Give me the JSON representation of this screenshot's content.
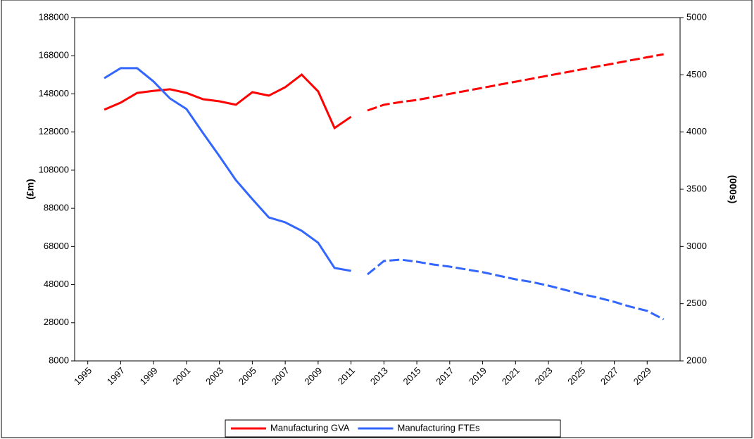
{
  "chart_data": {
    "type": "line",
    "y_label": "(£m)",
    "y2_label": "(000s)",
    "x": [
      1996,
      1997,
      1998,
      1999,
      2000,
      2001,
      2002,
      2003,
      2004,
      2005,
      2006,
      2007,
      2008,
      2009,
      2010,
      2011,
      2012,
      2013,
      2014,
      2015,
      2016,
      2017,
      2018,
      2019,
      2020,
      2021,
      2022,
      2023,
      2024,
      2025,
      2026,
      2027,
      2028,
      2029,
      2030
    ],
    "xlim": [
      1994.2,
      2031
    ],
    "xticks": [
      1995,
      1997,
      1999,
      2001,
      2003,
      2005,
      2007,
      2009,
      2011,
      2013,
      2015,
      2017,
      2019,
      2021,
      2023,
      2025,
      2027,
      2029
    ],
    "ylim": [
      8000,
      188000
    ],
    "yticks": [
      8000,
      28000,
      48000,
      68000,
      88000,
      108000,
      128000,
      148000,
      168000,
      188000
    ],
    "y2lim": [
      2000,
      5000
    ],
    "y2ticks": [
      2000,
      2500,
      3000,
      3500,
      4000,
      4500,
      5000
    ],
    "dash_from": 2011,
    "legend": "bottom",
    "series": [
      {
        "name": "Manufacturing GVA",
        "color": "#ff0000",
        "values": [
          139700,
          143400,
          148500,
          149600,
          150400,
          148500,
          145200,
          144100,
          142300,
          148900,
          147100,
          151500,
          158100,
          149300,
          130100,
          136000,
          139300,
          142300,
          143700,
          144800,
          146400,
          148000,
          149600,
          151200,
          152800,
          154400,
          156000,
          157600,
          159200,
          160800,
          162400,
          164000,
          165600,
          167200,
          168800
        ]
      },
      {
        "name": "Manufacturing FTEs",
        "color": "#3366ff",
        "axis": "y2",
        "values": [
          4471,
          4558,
          4558,
          4441,
          4293,
          4201,
          3992,
          3789,
          3580,
          3414,
          3254,
          3211,
          3137,
          3033,
          2812,
          2787,
          2756,
          2873,
          2885,
          2867,
          2842,
          2824,
          2799,
          2775,
          2744,
          2713,
          2689,
          2658,
          2621,
          2584,
          2553,
          2516,
          2473,
          2437,
          2363
        ]
      }
    ]
  }
}
